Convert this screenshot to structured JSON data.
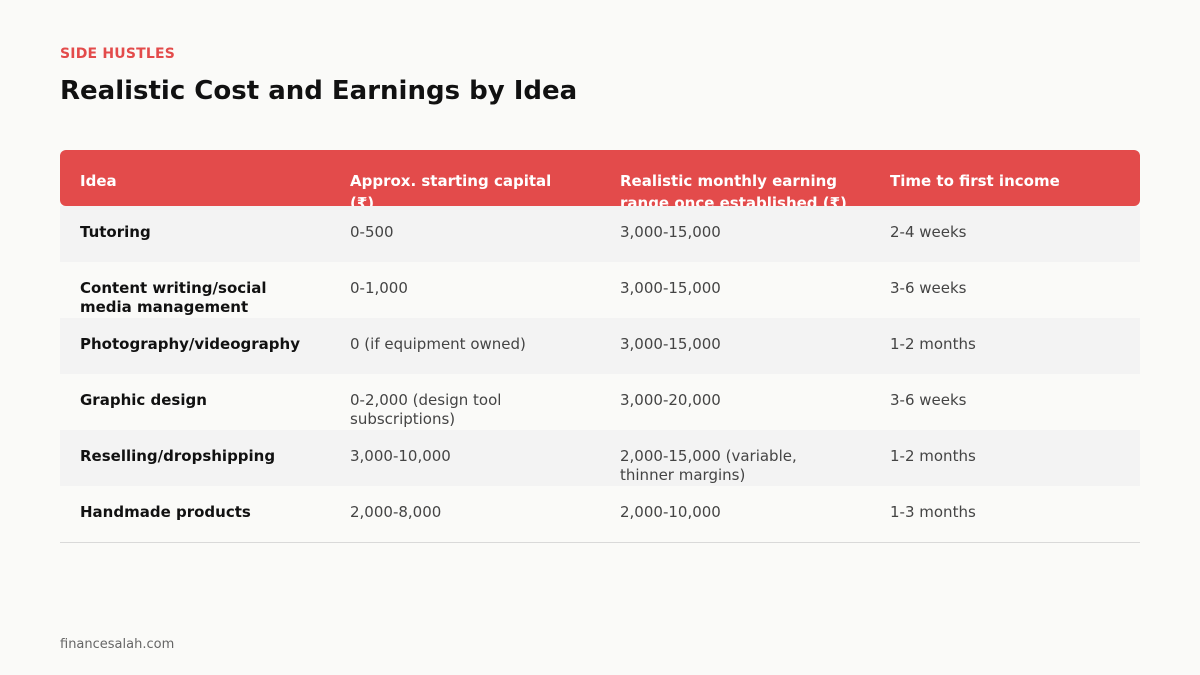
{
  "eyebrow": "SIDE HUSTLES",
  "title": "Realistic Cost and Earnings by Idea",
  "table": {
    "headers": [
      "Idea",
      "Approx. starting capital (₹)",
      "Realistic monthly earning range once established (₹)",
      "Time to first income"
    ],
    "rows": [
      [
        "Tutoring",
        "0-500",
        "3,000-15,000",
        "2-4 weeks"
      ],
      [
        "Content writing/social media management",
        "0-1,000",
        "3,000-15,000",
        "3-6 weeks"
      ],
      [
        "Photography/videography",
        "0 (if equipment owned)",
        "3,000-15,000",
        "1-2 months"
      ],
      [
        "Graphic design",
        "0-2,000 (design tool subscriptions)",
        "3,000-20,000",
        "3-6 weeks"
      ],
      [
        "Reselling/dropshipping",
        "3,000-10,000",
        "2,000-15,000 (variable, thinner margins)",
        "1-2 months"
      ],
      [
        "Handmade products",
        "2,000-8,000",
        "2,000-10,000",
        "1-3 months"
      ]
    ]
  },
  "footer": "financesalah.com",
  "colors": {
    "accent": "#e34b4b",
    "row_shade": "#f3f3f3",
    "background": "#fafaf8"
  }
}
